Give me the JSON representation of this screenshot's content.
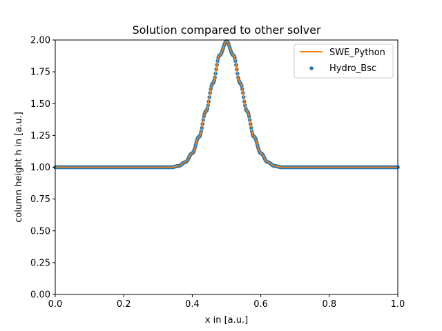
{
  "chart_data": {
    "type": "line",
    "title": "Solution compared to other solver",
    "xlabel": "x in [a.u.]",
    "ylabel": "column height h in [a.u.]",
    "xlim": [
      0.0,
      1.0
    ],
    "ylim": [
      0.0,
      2.0
    ],
    "xticks": [
      "0.0",
      "0.2",
      "0.4",
      "0.6",
      "0.8",
      "1.0"
    ],
    "yticks": [
      "0.00",
      "0.25",
      "0.50",
      "0.75",
      "1.00",
      "1.25",
      "1.50",
      "1.75",
      "2.00"
    ],
    "grid": false,
    "legend_position": "top-right",
    "series": [
      {
        "name": "SWE_Python",
        "kind": "line",
        "color": "#ff7f0e",
        "x": [
          0.0,
          0.3,
          0.32,
          0.34,
          0.36,
          0.38,
          0.4,
          0.42,
          0.44,
          0.46,
          0.48,
          0.5,
          0.52,
          0.54,
          0.56,
          0.58,
          0.6,
          0.62,
          0.64,
          0.66,
          0.68,
          0.7,
          1.0
        ],
        "y": [
          1.0,
          1.0,
          1.0,
          1.0,
          1.01,
          1.04,
          1.11,
          1.24,
          1.44,
          1.66,
          1.88,
          1.99,
          1.88,
          1.66,
          1.44,
          1.24,
          1.11,
          1.04,
          1.01,
          1.0,
          1.0,
          1.0,
          1.0
        ]
      },
      {
        "name": "Hydro_Bsc",
        "kind": "scatter",
        "color": "#1f77b4",
        "x": [
          0.0,
          0.3,
          0.32,
          0.34,
          0.36,
          0.38,
          0.4,
          0.42,
          0.44,
          0.46,
          0.48,
          0.5,
          0.52,
          0.54,
          0.56,
          0.58,
          0.6,
          0.62,
          0.64,
          0.66,
          0.68,
          0.7,
          1.0
        ],
        "y": [
          1.0,
          1.0,
          1.0,
          1.0,
          1.01,
          1.04,
          1.11,
          1.24,
          1.44,
          1.66,
          1.88,
          1.99,
          1.88,
          1.66,
          1.44,
          1.24,
          1.11,
          1.04,
          1.01,
          1.0,
          1.0,
          1.0,
          1.0
        ]
      }
    ]
  }
}
